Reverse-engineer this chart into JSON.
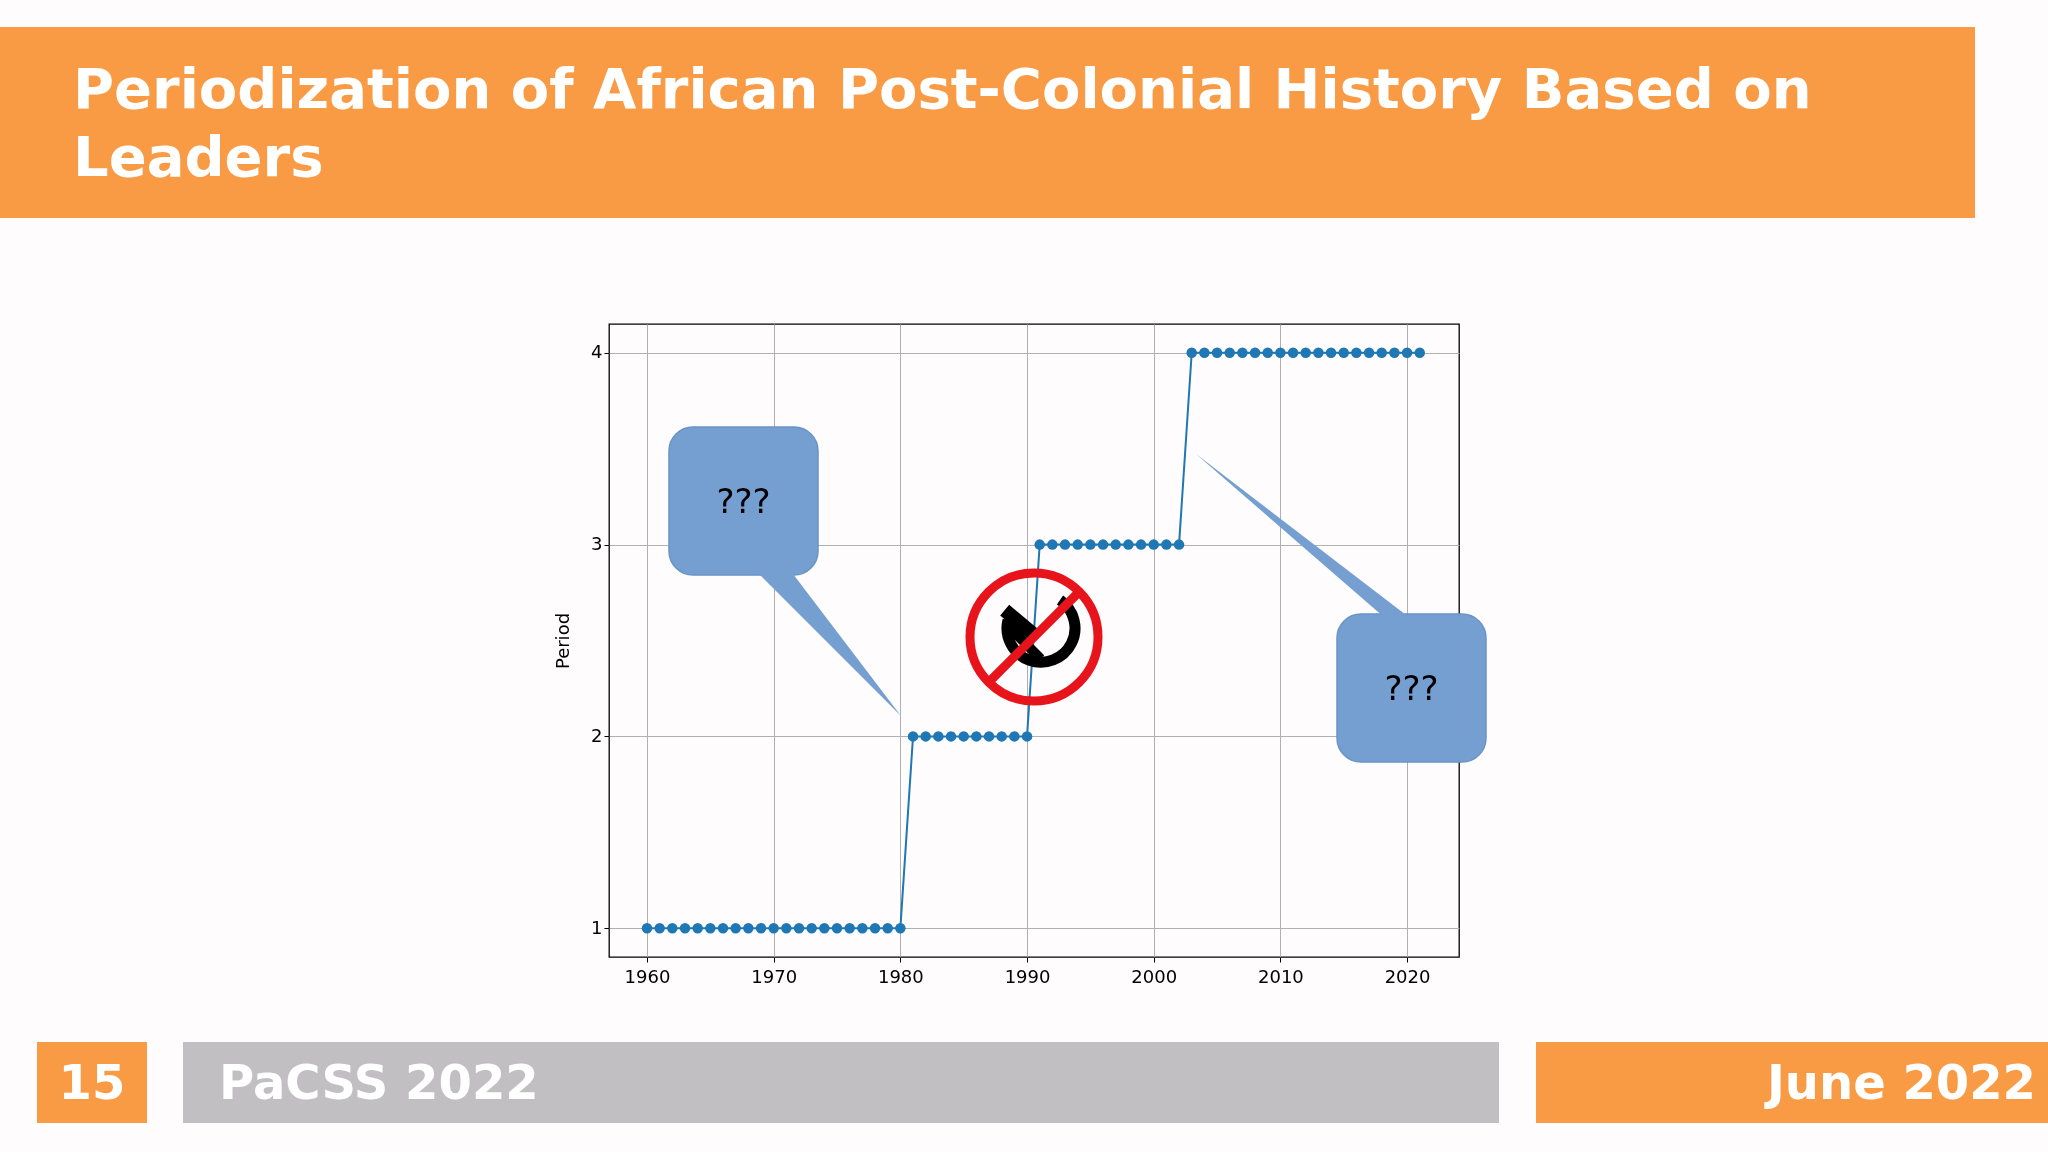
{
  "chart_data": {
    "type": "line",
    "title": "Periodization of African Post-Colonial History Based on Leaders",
    "ylabel": "Period",
    "x": [
      1960,
      1961,
      1962,
      1963,
      1964,
      1965,
      1966,
      1967,
      1968,
      1969,
      1970,
      1971,
      1972,
      1973,
      1974,
      1975,
      1976,
      1977,
      1978,
      1979,
      1980,
      1981,
      1982,
      1983,
      1984,
      1985,
      1986,
      1987,
      1988,
      1989,
      1990,
      1991,
      1992,
      1993,
      1994,
      1995,
      1996,
      1997,
      1998,
      1999,
      2000,
      2001,
      2002,
      2003,
      2004,
      2005,
      2006,
      2007,
      2008,
      2009,
      2010,
      2011,
      2012,
      2013,
      2014,
      2015,
      2016,
      2017,
      2018,
      2019,
      2020,
      2021
    ],
    "series": [
      {
        "color": "#1f77b4",
        "values": [
          1,
          1,
          1,
          1,
          1,
          1,
          1,
          1,
          1,
          1,
          1,
          1,
          1,
          1,
          1,
          1,
          1,
          1,
          1,
          1,
          1,
          2,
          2,
          2,
          2,
          2,
          2,
          2,
          2,
          2,
          2,
          3,
          3,
          3,
          3,
          3,
          3,
          3,
          3,
          3,
          3,
          3,
          3,
          4,
          4,
          4,
          4,
          4,
          4,
          4,
          4,
          4,
          4,
          4,
          4,
          4,
          4,
          4,
          4,
          4,
          4,
          4
        ]
      }
    ],
    "xlim": [
      1957,
      2024.1
    ],
    "xticks": [
      1960,
      1970,
      1980,
      1990,
      2000,
      2010,
      2020
    ],
    "ylim": [
      0.85,
      4.15
    ],
    "yticks": [
      1,
      2,
      3,
      4
    ],
    "grid": true,
    "marker": "circle",
    "line_style": "solid",
    "annotations": [
      "???",
      "???",
      "15",
      "PaCSS 2022",
      "June 2022"
    ]
  }
}
